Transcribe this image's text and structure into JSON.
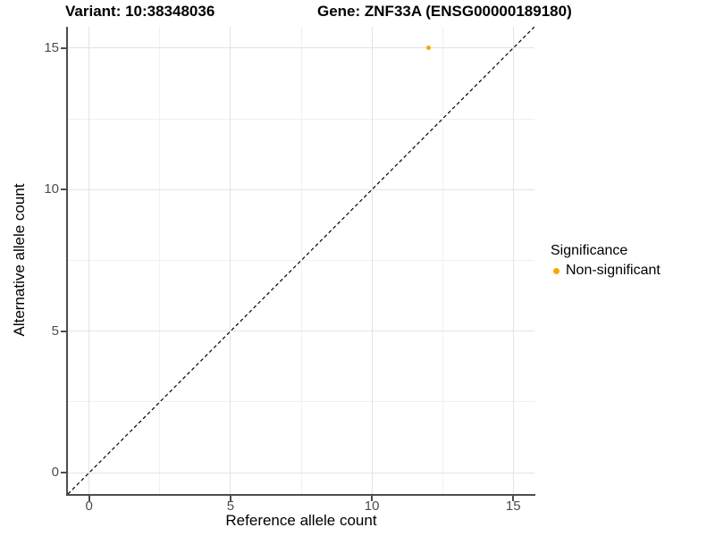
{
  "figure": {
    "title_left": "Variant: 10:38348036",
    "title_right": "Gene: ZNF33A (ENSG00000189180)"
  },
  "chart_data": {
    "type": "scatter",
    "title": "Variant: 10:38348036   Gene: ZNF33A (ENSG00000189180)",
    "xlabel": "Reference allele count",
    "ylabel": "Alternative allele count",
    "xlim": [
      -0.75,
      15.75
    ],
    "ylim": [
      -0.75,
      15.75
    ],
    "xticks": [
      0,
      5,
      10,
      15
    ],
    "yticks": [
      0,
      5,
      10,
      15
    ],
    "minor_xticks": [
      2.5,
      7.5,
      12.5
    ],
    "minor_yticks": [
      2.5,
      7.5,
      12.5
    ],
    "grid": true,
    "points": [
      {
        "x": 12,
        "y": 15,
        "series": "Non-significant"
      }
    ],
    "identity_line": {
      "style": "dashed",
      "from": [
        -0.75,
        -0.75
      ],
      "to": [
        15.75,
        15.75
      ],
      "color": "#000000"
    },
    "legend": {
      "title": "Significance",
      "position": "right",
      "entries": [
        {
          "label": "Non-significant",
          "color": "#FFA500"
        }
      ]
    },
    "colors": {
      "point": "#FFA500",
      "grid_major": "#e3e3e3",
      "grid_minor": "#f0f0f0",
      "axis_line": "#4d4d4d",
      "tick_label": "#4d4d4d",
      "title": "#000000"
    }
  }
}
